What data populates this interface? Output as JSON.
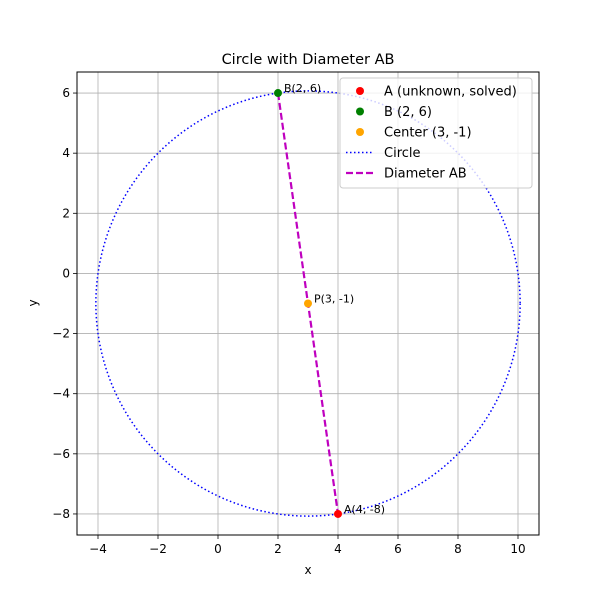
{
  "chart_data": {
    "type": "scatter",
    "title": "Circle with Diameter AB",
    "xlabel": "x",
    "ylabel": "y",
    "xlim": [
      -4.7,
      10.7
    ],
    "ylim": [
      -8.7,
      6.7
    ],
    "xticks": [
      -4,
      -2,
      0,
      2,
      4,
      6,
      8,
      10
    ],
    "yticks": [
      -8,
      -6,
      -4,
      -2,
      0,
      2,
      4,
      6
    ],
    "xtick_labels": [
      "−4",
      "−2",
      "0",
      "2",
      "4",
      "6",
      "8",
      "10"
    ],
    "ytick_labels": [
      "−8",
      "−6",
      "−4",
      "−2",
      "0",
      "2",
      "4",
      "6"
    ],
    "grid": true,
    "legend_position": "top-right",
    "points": [
      {
        "name": "A (unknown, solved)",
        "x": 4,
        "y": -8,
        "color": "#ff0000",
        "annotation": "A(4, -8)"
      },
      {
        "name": "B (2, 6)",
        "x": 2,
        "y": 6,
        "color": "#008000",
        "annotation": "B(2, 6)"
      },
      {
        "name": "Center (3, -1)",
        "x": 3,
        "y": -1,
        "color": "#ffa500",
        "annotation": "P(3, -1)"
      }
    ],
    "circle": {
      "name": "Circle",
      "center": [
        3,
        -1
      ],
      "radius": 7.071,
      "color": "#0000ff",
      "style": "dotted"
    },
    "diameter": {
      "name": "Diameter AB",
      "from": [
        2,
        6
      ],
      "to": [
        4,
        -8
      ],
      "color": "#bf00bf",
      "style": "dashed"
    }
  }
}
